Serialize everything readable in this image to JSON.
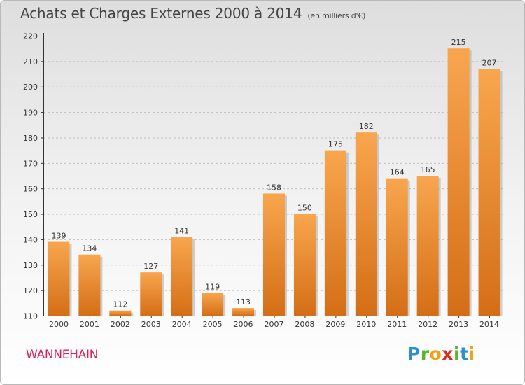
{
  "header": {
    "title": "Achats et Charges Externes 2000 à 2014",
    "unit": "(en milliers d'€)"
  },
  "footer": {
    "commune": "WANNEHAIN",
    "logo_letters": [
      {
        "ch": "P",
        "color": "#2e8fd0"
      },
      {
        "ch": "r",
        "color": "#59b52c"
      },
      {
        "ch": "o",
        "color": "#f0a21b"
      },
      {
        "ch": "x",
        "color": "#e2281f"
      },
      {
        "ch": "i",
        "color": "#59b52c"
      },
      {
        "ch": "t",
        "color": "#2e8fd0"
      },
      {
        "ch": "i",
        "color": "#f0a21b"
      }
    ]
  },
  "colors": {
    "bar_top": "#f8a64e",
    "bar_bottom": "#d46e16",
    "bar_shadow": "#aaaaaa",
    "grid": "#bfbfbf",
    "axis": "#333333"
  },
  "chart_data": {
    "type": "bar",
    "categories": [
      "2000",
      "2001",
      "2002",
      "2003",
      "2004",
      "2005",
      "2006",
      "2007",
      "2008",
      "2009",
      "2010",
      "2011",
      "2012",
      "2013",
      "2014"
    ],
    "values": [
      139,
      134,
      112,
      127,
      141,
      119,
      113,
      158,
      150,
      175,
      182,
      164,
      165,
      215,
      207
    ],
    "ylim": [
      110,
      220
    ],
    "yticks": [
      110,
      120,
      130,
      140,
      150,
      160,
      170,
      180,
      190,
      200,
      210,
      220
    ],
    "grid": true
  }
}
